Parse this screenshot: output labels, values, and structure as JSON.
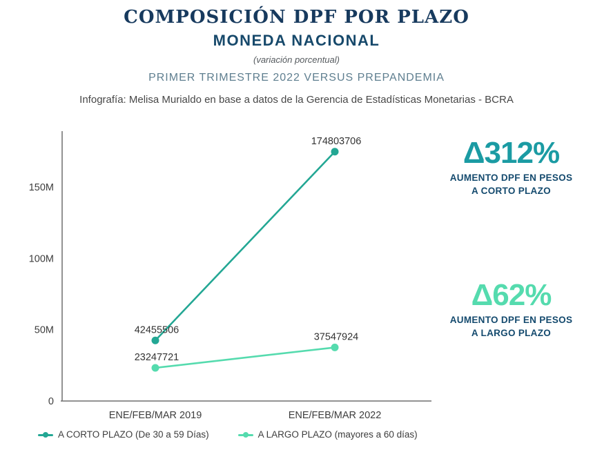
{
  "header": {
    "title": "COMPOSICIÓN DPF POR PLAZO",
    "subtitle": "MONEDA NACIONAL",
    "note": "(variación porcentual)",
    "comparison": "PRIMER TRIMESTRE 2022 VERSUS PREPANDEMIA",
    "credit": "Infografía: Melisa Murialdo en base a datos de la Gerencia de Estadísticas Monetarias - BCRA"
  },
  "chart_data": {
    "type": "line",
    "categories": [
      "ENE/FEB/MAR 2019",
      "ENE/FEB/MAR 2022"
    ],
    "series": [
      {
        "name": "A CORTO PLAZO (De 30 a 59 Días)",
        "color": "#23a794",
        "values": [
          42455506,
          174803706
        ],
        "point_labels": [
          "42455506",
          "174803706"
        ]
      },
      {
        "name": "A LARGO PLAZO (mayores a 60 días)",
        "color": "#55dbae",
        "values": [
          23247721,
          37547924
        ],
        "point_labels": [
          "23247721",
          "37547924"
        ]
      }
    ],
    "y_ticks": [
      {
        "label": "0",
        "value": 0
      },
      {
        "label": "50M",
        "value": 50000000
      },
      {
        "label": "100M",
        "value": 100000000
      },
      {
        "label": "150M",
        "value": 150000000
      }
    ],
    "ylim": [
      0,
      189200000
    ],
    "grid": false,
    "legend_position": "bottom",
    "axis_color": "#6f6f6f",
    "tick_label_color": "#3d3d3d",
    "point_label_color": "#333333"
  },
  "annotations": [
    {
      "big": "Δ312%",
      "line1": "AUMENTO DPF EN PESOS",
      "line2": "A CORTO PLAZO",
      "color": "#1b9ba3"
    },
    {
      "big": "Δ62%",
      "line1": "AUMENTO DPF EN PESOS",
      "line2": "A LARGO PLAZO",
      "color": "#55dbae"
    }
  ]
}
